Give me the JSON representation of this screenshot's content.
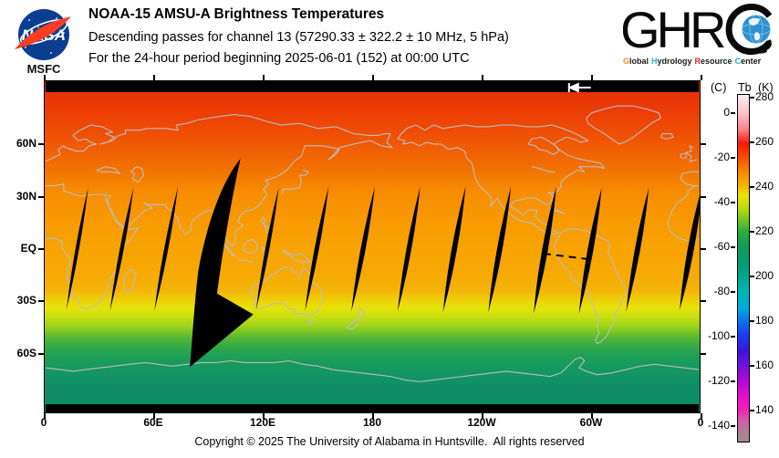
{
  "header": {
    "nasa_logo_text": "NASA",
    "msfc_label": "MSFC",
    "title": "NOAA-15 AMSU-A Brightness Temperatures",
    "subtitle1": "Descending passes for channel 13 (57290.33 ± 322.2 ± 10 MHz, 5 hPa)",
    "subtitle2": "For the 24-hour period beginning 2025-06-01 (152) at 00:00 UTC",
    "ghrc_logo_text": "GHR",
    "ghrc_tagline_words": [
      {
        "initial": "G",
        "rest": "lobal",
        "color": "#f6921e"
      },
      {
        "initial": "H",
        "rest": "ydrology",
        "color": "#29abe2"
      },
      {
        "initial": "R",
        "rest": "esource",
        "color": "#ed1c24"
      },
      {
        "initial": "C",
        "rest": "enter",
        "color": "#29abe2"
      }
    ]
  },
  "map": {
    "lat_labels": [
      "60N",
      "30N",
      "EQ",
      "30S",
      "60S"
    ],
    "lon_labels": [
      "0",
      "60E",
      "120E",
      "180",
      "120W",
      "60W",
      "0"
    ]
  },
  "colorbar": {
    "header_c": "(C)",
    "header_tb": "Tb",
    "header_k": "(K)",
    "kelvin_ticks": [
      "280",
      "260",
      "240",
      "220",
      "200",
      "180",
      "160",
      "140"
    ],
    "celsius_ticks": [
      "0",
      "-20",
      "-40",
      "-60",
      "-80",
      "-100",
      "-120",
      "-140"
    ]
  },
  "footer": {
    "copyright": "Copyright © 2025 The University of Alabama in Huntsville.  All rights reserved"
  },
  "colors": {
    "nasa_blue": "#0b3d91",
    "nasa_red": "#fc3d21",
    "coastline_gray": "#bdbdbd",
    "ghrc_orange": "#f6921e",
    "ghrc_blue": "#29abe2",
    "ghrc_red": "#ed1c24"
  },
  "chart_data": {
    "type": "heatmap",
    "title": "NOAA-15 AMSU-A Brightness Temperatures",
    "subtitle": [
      "Descending passes for channel 13 (57290.33 ± 322.2 ± 10 MHz, 5 hPa)",
      "For the 24-hour period beginning 2025-06-01 (152) at 00:00 UTC"
    ],
    "projection": "equirectangular, longitude 0E eastward to 0E (180 at center), latitude 90N to 90S",
    "x_tick_labels": [
      "0",
      "60E",
      "120E",
      "180",
      "120W",
      "60W",
      "0"
    ],
    "y_tick_labels": [
      "60N",
      "30N",
      "EQ",
      "30S",
      "60S"
    ],
    "colorbar": {
      "quantity": "Tb",
      "units_right": "K",
      "units_left": "C",
      "kelvin_ticks": [
        280,
        260,
        240,
        220,
        200,
        180,
        160,
        140
      ],
      "celsius_ticks": [
        0,
        -20,
        -40,
        -60,
        -80,
        -100,
        -120,
        -140
      ],
      "top_value_k": 281,
      "bottom_value_k": 126,
      "color_order_top_to_bottom": [
        "white-pink",
        "red",
        "orange",
        "yellow",
        "green",
        "teal",
        "cyan",
        "blue",
        "violet",
        "magenta",
        "gray-mauve"
      ]
    },
    "zonal_mean_tb_k": [
      {
        "lat": 85,
        "tb": 255
      },
      {
        "lat": 60,
        "tb": 250
      },
      {
        "lat": 30,
        "tb": 246
      },
      {
        "lat": 0,
        "tb": 243
      },
      {
        "lat": -30,
        "tb": 237
      },
      {
        "lat": -45,
        "tb": 228
      },
      {
        "lat": -60,
        "tb": 215
      },
      {
        "lat": -75,
        "tb": 206
      },
      {
        "lat": -88,
        "tb": 203
      }
    ],
    "data_gaps": "13 narrow black inter-orbit slivers between ~25N and ~35S spaced ~25 deg longitude, plus one large black missing-swath wedge near 85E-115E reaching ~75S",
    "annotations": [
      "white left arrow marker at top near 110W",
      "black dashed equator segment across western South America"
    ]
  }
}
